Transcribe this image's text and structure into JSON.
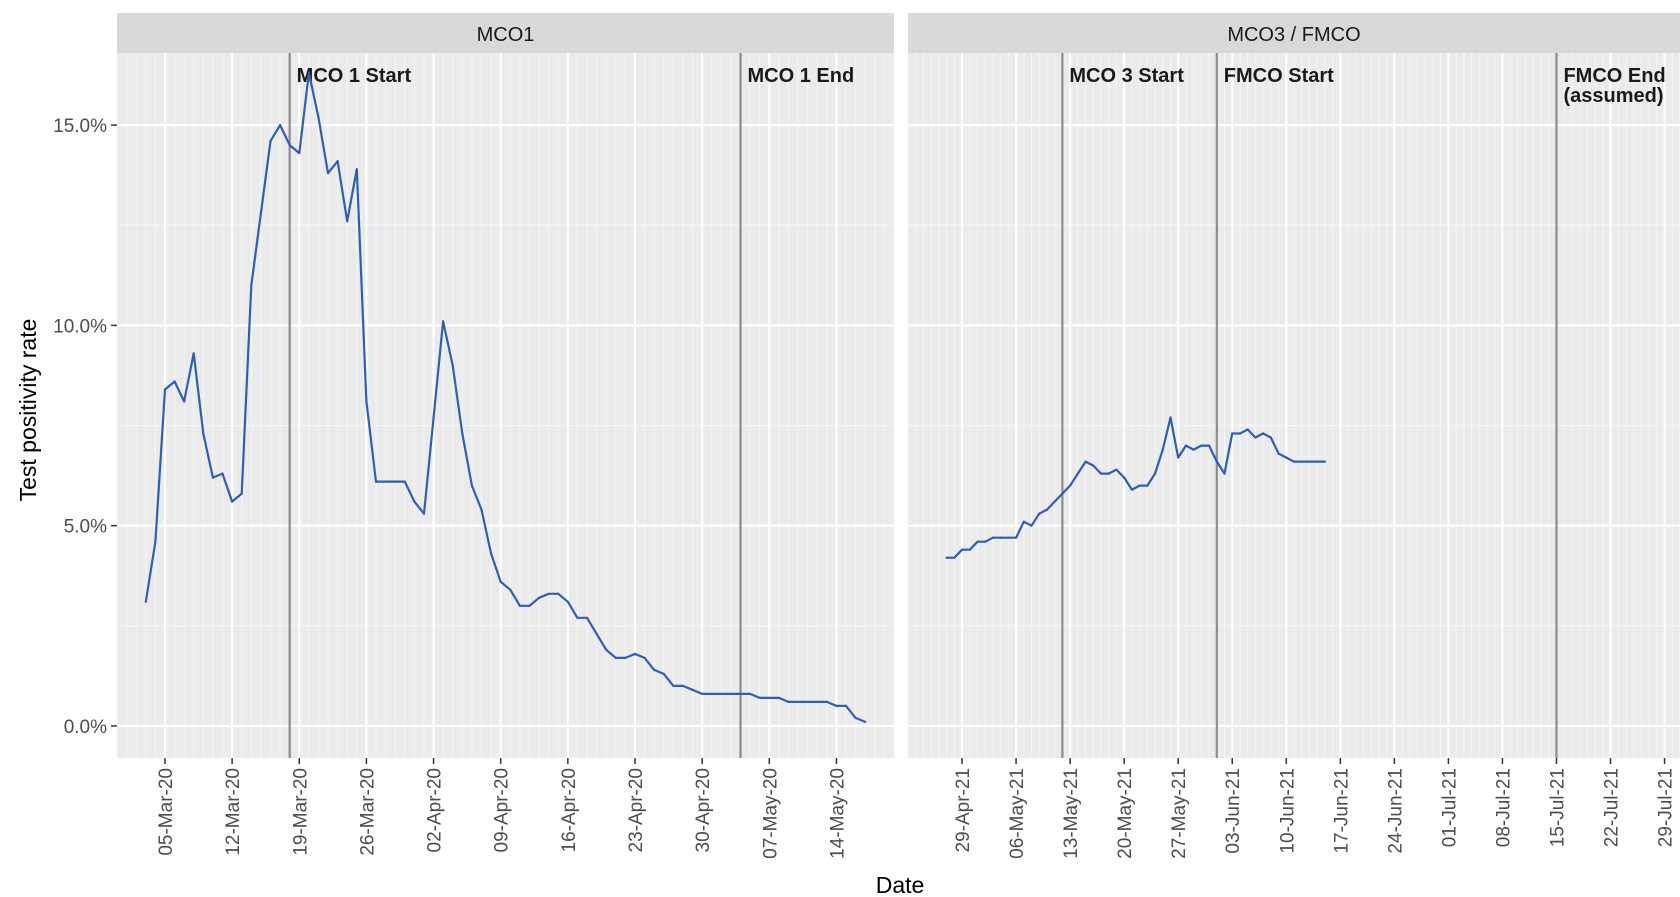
{
  "chart_data": [
    {
      "type": "line",
      "facet": "MCO1",
      "xlabel": "Date",
      "ylabel": "Test positivity rate",
      "ylim": [
        -0.008,
        0.168
      ],
      "y_ticks": [
        0,
        0.05,
        0.1,
        0.15
      ],
      "y_tick_labels": [
        "0.0%",
        "5.0%",
        "10.0%",
        "15.0%"
      ],
      "xlim": [
        "2020-02-29",
        "2020-05-20"
      ],
      "x_ticks": [
        "2020-03-05",
        "2020-03-12",
        "2020-03-19",
        "2020-03-26",
        "2020-04-02",
        "2020-04-09",
        "2020-04-16",
        "2020-04-23",
        "2020-04-30",
        "2020-05-07",
        "2020-05-14"
      ],
      "x_tick_labels": [
        "05-Mar-20",
        "12-Mar-20",
        "19-Mar-20",
        "26-Mar-20",
        "02-Apr-20",
        "09-Apr-20",
        "16-Apr-20",
        "23-Apr-20",
        "30-Apr-20",
        "07-May-20",
        "14-May-20"
      ],
      "events": [
        {
          "date": "2020-03-18",
          "label": [
            "MCO 1 Start"
          ]
        },
        {
          "date": "2020-05-04",
          "label": [
            "MCO 1 End"
          ]
        }
      ],
      "series": [
        {
          "color": "#2d5fb7",
          "x": [
            "2020-03-03",
            "2020-03-04",
            "2020-03-05",
            "2020-03-06",
            "2020-03-07",
            "2020-03-08",
            "2020-03-09",
            "2020-03-10",
            "2020-03-11",
            "2020-03-12",
            "2020-03-13",
            "2020-03-14",
            "2020-03-15",
            "2020-03-16",
            "2020-03-17",
            "2020-03-18",
            "2020-03-19",
            "2020-03-20",
            "2020-03-21",
            "2020-03-22",
            "2020-03-23",
            "2020-03-24",
            "2020-03-25",
            "2020-03-26",
            "2020-03-27",
            "2020-03-28",
            "2020-03-29",
            "2020-03-30",
            "2020-03-31",
            "2020-04-01",
            "2020-04-02",
            "2020-04-03",
            "2020-04-04",
            "2020-04-05",
            "2020-04-06",
            "2020-04-07",
            "2020-04-08",
            "2020-04-09",
            "2020-04-10",
            "2020-04-11",
            "2020-04-12",
            "2020-04-13",
            "2020-04-14",
            "2020-04-15",
            "2020-04-16",
            "2020-04-17",
            "2020-04-18",
            "2020-04-19",
            "2020-04-20",
            "2020-04-21",
            "2020-04-22",
            "2020-04-23",
            "2020-04-24",
            "2020-04-25",
            "2020-04-26",
            "2020-04-27",
            "2020-04-28",
            "2020-04-29",
            "2020-04-30",
            "2020-05-01",
            "2020-05-02",
            "2020-05-03",
            "2020-05-04",
            "2020-05-05",
            "2020-05-06",
            "2020-05-07",
            "2020-05-08",
            "2020-05-09",
            "2020-05-10",
            "2020-05-11",
            "2020-05-12",
            "2020-05-13",
            "2020-05-14",
            "2020-05-15",
            "2020-05-16",
            "2020-05-17"
          ],
          "y": [
            0.031,
            0.046,
            0.084,
            0.086,
            0.081,
            0.093,
            0.073,
            0.062,
            0.063,
            0.056,
            0.058,
            0.11,
            0.128,
            0.146,
            0.15,
            0.145,
            0.143,
            0.163,
            0.152,
            0.138,
            0.141,
            0.126,
            0.139,
            0.081,
            0.061,
            0.061,
            0.061,
            0.061,
            0.056,
            0.053,
            0.077,
            0.101,
            0.09,
            0.073,
            0.06,
            0.054,
            0.043,
            0.036,
            0.034,
            0.03,
            0.03,
            0.032,
            0.033,
            0.033,
            0.031,
            0.027,
            0.027,
            0.023,
            0.019,
            0.017,
            0.017,
            0.018,
            0.017,
            0.014,
            0.013,
            0.01,
            0.01,
            0.009,
            0.008,
            0.008,
            0.008,
            0.008,
            0.008,
            0.008,
            0.007,
            0.007,
            0.007,
            0.006,
            0.006,
            0.006,
            0.006,
            0.006,
            0.005,
            0.005,
            0.002,
            0.001
          ]
        }
      ]
    },
    {
      "type": "line",
      "facet": "MCO3 / FMCO",
      "xlabel": "Date",
      "ylabel": "Test positivity rate",
      "ylim": [
        -0.008,
        0.168
      ],
      "y_ticks": [
        0,
        0.05,
        0.1,
        0.15
      ],
      "xlim": [
        "2021-04-22",
        "2021-07-31"
      ],
      "x_ticks": [
        "2021-04-29",
        "2021-05-06",
        "2021-05-13",
        "2021-05-20",
        "2021-05-27",
        "2021-06-03",
        "2021-06-10",
        "2021-06-17",
        "2021-06-24",
        "2021-07-01",
        "2021-07-08",
        "2021-07-15",
        "2021-07-22",
        "2021-07-29"
      ],
      "x_tick_labels": [
        "29-Apr-21",
        "06-May-21",
        "13-May-21",
        "20-May-21",
        "27-May-21",
        "03-Jun-21",
        "10-Jun-21",
        "17-Jun-21",
        "24-Jun-21",
        "01-Jul-21",
        "08-Jul-21",
        "15-Jul-21",
        "22-Jul-21",
        "29-Jul-21"
      ],
      "events": [
        {
          "date": "2021-05-12",
          "label": [
            "MCO 3 Start"
          ]
        },
        {
          "date": "2021-06-01",
          "label": [
            "FMCO Start"
          ]
        },
        {
          "date": "2021-07-15",
          "label": [
            "FMCO End",
            "(assumed)"
          ]
        }
      ],
      "series": [
        {
          "color": "#2d5fb7",
          "x": [
            "2021-04-27",
            "2021-04-28",
            "2021-04-29",
            "2021-04-30",
            "2021-05-01",
            "2021-05-02",
            "2021-05-03",
            "2021-05-04",
            "2021-05-05",
            "2021-05-06",
            "2021-05-07",
            "2021-05-08",
            "2021-05-09",
            "2021-05-10",
            "2021-05-11",
            "2021-05-12",
            "2021-05-13",
            "2021-05-14",
            "2021-05-15",
            "2021-05-16",
            "2021-05-17",
            "2021-05-18",
            "2021-05-19",
            "2021-05-20",
            "2021-05-21",
            "2021-05-22",
            "2021-05-23",
            "2021-05-24",
            "2021-05-25",
            "2021-05-26",
            "2021-05-27",
            "2021-05-28",
            "2021-05-29",
            "2021-05-30",
            "2021-05-31",
            "2021-06-01",
            "2021-06-02",
            "2021-06-03",
            "2021-06-04",
            "2021-06-05",
            "2021-06-06",
            "2021-06-07",
            "2021-06-08",
            "2021-06-09",
            "2021-06-10",
            "2021-06-11",
            "2021-06-12",
            "2021-06-13",
            "2021-06-14",
            "2021-06-15"
          ],
          "y": [
            0.042,
            0.042,
            0.044,
            0.044,
            0.046,
            0.046,
            0.047,
            0.047,
            0.047,
            0.047,
            0.051,
            0.05,
            0.053,
            0.054,
            0.056,
            0.058,
            0.06,
            0.063,
            0.066,
            0.065,
            0.063,
            0.063,
            0.064,
            0.062,
            0.059,
            0.06,
            0.06,
            0.063,
            0.069,
            0.077,
            0.067,
            0.07,
            0.069,
            0.07,
            0.07,
            0.066,
            0.063,
            0.073,
            0.073,
            0.074,
            0.072,
            0.073,
            0.072,
            0.068,
            0.067,
            0.066,
            0.066,
            0.066,
            0.066,
            0.066
          ]
        }
      ]
    }
  ]
}
